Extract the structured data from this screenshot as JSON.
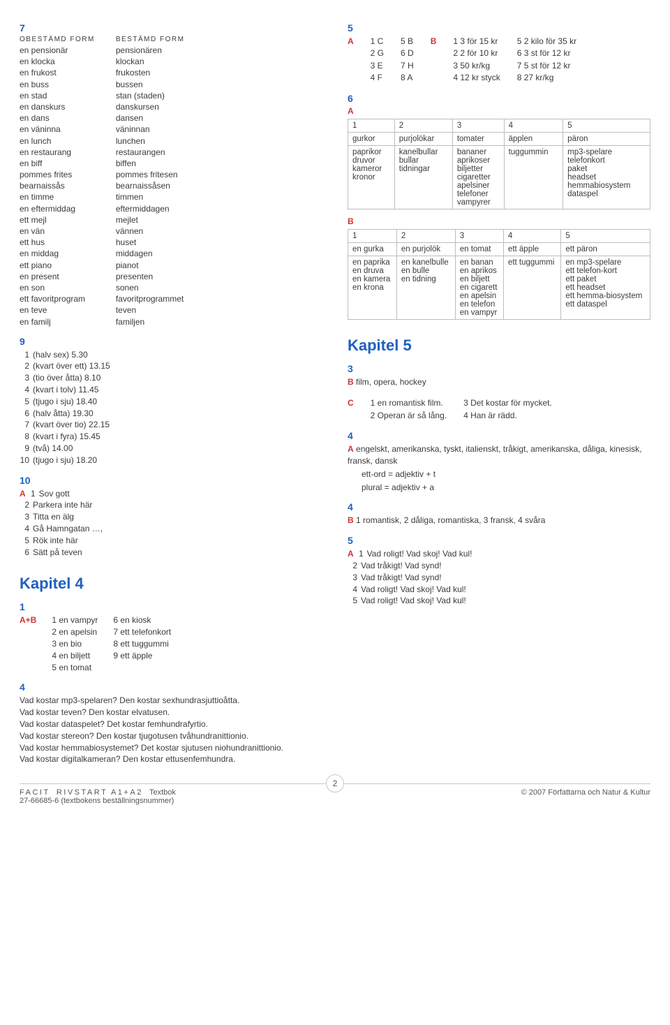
{
  "left": {
    "ex7": {
      "num": "7",
      "headers": [
        "OBESTÄMD FORM",
        "BESTÄMD FORM"
      ],
      "rows": [
        [
          "en pensionär",
          "pensionären"
        ],
        [
          "en klocka",
          "klockan"
        ],
        [
          "en frukost",
          "frukosten"
        ],
        [
          "en buss",
          "bussen"
        ],
        [
          "en stad",
          "stan (staden)"
        ],
        [
          "en danskurs",
          "danskursen"
        ],
        [
          "en dans",
          "dansen"
        ],
        [
          "en väninna",
          "väninnan"
        ],
        [
          "en lunch",
          "lunchen"
        ],
        [
          "en restaurang",
          "restaurangen"
        ],
        [
          "en biff",
          "biffen"
        ],
        [
          "pommes frites",
          "pommes fritesen"
        ],
        [
          "bearnaissås",
          "bearnaissåsen"
        ],
        [
          "en timme",
          "timmen"
        ],
        [
          "en eftermiddag",
          "eftermiddagen"
        ],
        [
          "ett mejl",
          "mejlet"
        ],
        [
          "en vän",
          "vännen"
        ],
        [
          "ett hus",
          "huset"
        ],
        [
          "en middag",
          "middagen"
        ],
        [
          "ett piano",
          "pianot"
        ],
        [
          "en present",
          "presenten"
        ],
        [
          "en son",
          "sonen"
        ],
        [
          "ett favoritprogram",
          "favoritprogrammet"
        ],
        [
          "en teve",
          "teven"
        ],
        [
          "en familj",
          "familjen"
        ]
      ]
    },
    "ex9": {
      "num": "9",
      "items": [
        "(halv sex) 5.30",
        "(kvart över ett) 13.15",
        "(tio över åtta) 8.10",
        "(kvart i tolv) 11.45",
        "(tjugo i sju) 18.40",
        "(halv åtta) 19.30",
        "(kvart över tio) 22.15",
        "(kvart i fyra) 15.45",
        "(två) 14.00",
        "(tjugo i sju) 18.20"
      ]
    },
    "ex10": {
      "num": "10",
      "letter": "A",
      "items": [
        "Sov gott",
        "Parkera inte här",
        "Titta en älg",
        "Gå Hamngatan …,",
        "Rök inte här",
        "Sätt på teven"
      ]
    },
    "chapter4": {
      "title": "Kapitel 4",
      "ex1": {
        "num": "1",
        "letter": "A+B",
        "col1": [
          "en vampyr",
          "en apelsin",
          "en bio",
          "en biljett",
          "en tomat"
        ],
        "col2": [
          "en kiosk",
          "ett telefonkort",
          "ett tuggummi",
          "ett äpple"
        ]
      },
      "ex4": {
        "num": "4",
        "lines": [
          "Vad kostar mp3-spelaren? Den kostar sexhundrasjuttioåtta.",
          "Vad kostar teven? Den kostar elvatusen.",
          "Vad kostar dataspelet? Det kostar femhundrafyrtio.",
          "Vad kostar stereon? Den kostar tjugotusen tvåhundranittionio.",
          "Vad kostar hemmabiosystemet? Det kostar sjutusen niohundranittionio.",
          "Vad kostar digitalkameran? Den kostar ettusenfemhundra."
        ]
      }
    }
  },
  "right": {
    "ex5": {
      "num": "5",
      "letter": "A",
      "rowA": [
        [
          "1",
          "C"
        ],
        [
          "2",
          "G"
        ],
        [
          "3",
          "E"
        ],
        [
          "4",
          "F"
        ]
      ],
      "rowB": [
        [
          "5",
          "B"
        ],
        [
          "6",
          "D"
        ],
        [
          "7",
          "H"
        ],
        [
          "8",
          "A"
        ]
      ],
      "letter2": "B",
      "rowC": [
        [
          "1",
          "3 för 15 kr"
        ],
        [
          "2",
          "2 för 10 kr"
        ],
        [
          "3",
          "50 kr/kg"
        ],
        [
          "4",
          "12 kr styck"
        ]
      ],
      "rowD": [
        [
          "5",
          "2 kilo för 35 kr"
        ],
        [
          "6",
          "3 st för 12 kr"
        ],
        [
          "7",
          "5 st för 12 kr"
        ],
        [
          "8",
          "27 kr/kg"
        ]
      ]
    },
    "ex6": {
      "num": "6",
      "letterA": "A",
      "tableA": {
        "head": [
          "1",
          "2",
          "3",
          "4",
          "5"
        ],
        "row1": [
          "gurkor",
          "purjolökar",
          "tomater",
          "äpplen",
          "päron"
        ],
        "cells": [
          [
            "paprikor",
            "druvor",
            "kameror",
            "kronor"
          ],
          [
            "kanelbullar",
            "bullar",
            "tidningar"
          ],
          [
            "bananer",
            "aprikoser",
            "biljetter",
            "cigaretter",
            "apelsiner",
            "telefoner",
            "vampyrer"
          ],
          [
            "tuggummin"
          ],
          [
            "mp3-spelare",
            "telefonkort",
            "paket",
            "headset",
            "hemmabiosystem",
            "dataspel"
          ]
        ]
      },
      "letterB": "B",
      "tableB": {
        "head": [
          "1",
          "2",
          "3",
          "4",
          "5"
        ],
        "row1": [
          "en gurka",
          "en purjolök",
          "en tomat",
          "ett äpple",
          "ett päron"
        ],
        "cells": [
          [
            "en paprika",
            "en druva",
            "en kamera",
            "en krona"
          ],
          [
            "en kanelbulle",
            "en bulle",
            "en tidning"
          ],
          [
            "en banan",
            "en aprikos",
            "en biljett",
            "en cigarett",
            "en apelsin",
            "en telefon",
            "en vampyr"
          ],
          [
            "ett tuggummi"
          ],
          [
            "en mp3-spelare",
            "ett telefon-kort",
            "ett paket",
            "ett headset",
            "ett hemma-biosystem",
            "ett dataspel"
          ]
        ]
      }
    },
    "chapter5": {
      "title": "Kapitel 5",
      "ex3": {
        "num": "3",
        "letter": "B",
        "text": "film, opera, hockey",
        "letterC": "C",
        "c_items": [
          "en romantisk film.",
          "Operan är så lång."
        ],
        "c_right": [
          "Det kostar för mycket.",
          "Han är rädd."
        ]
      },
      "ex4a": {
        "num": "4",
        "letter": "A",
        "text": "engelskt, amerikanska, tyskt, italienskt, tråkigt, amerikanska, dåliga, kinesisk, fransk, dansk",
        "rule1": "ett-ord = adjektiv + t",
        "rule2": "plural = adjektiv + a"
      },
      "ex4b": {
        "num": "4",
        "letter": "B",
        "text": "1 romantisk, 2 dåliga, romantiska, 3 fransk, 4 svåra"
      },
      "ex5": {
        "num": "5",
        "letter": "A",
        "items": [
          "Vad roligt! Vad skoj! Vad kul!",
          "Vad tråkigt! Vad synd!",
          "Vad tråkigt! Vad synd!",
          "Vad roligt! Vad skoj! Vad kul!",
          "Vad roligt! Vad skoj! Vad kul!"
        ]
      }
    }
  },
  "footer": {
    "left1": "FACIT",
    "left2": "RIVSTART A1+A2",
    "left3": "Textbok",
    "sub": "27-66685-6 (textbokens beställningsnummer)",
    "right": "© 2007 Författarna och Natur & Kultur",
    "page": "2"
  }
}
